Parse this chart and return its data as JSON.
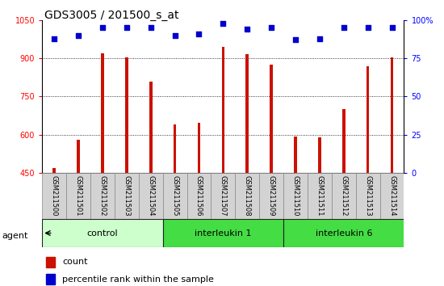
{
  "title": "GDS3005 / 201500_s_at",
  "samples": [
    "GSM211500",
    "GSM211501",
    "GSM211502",
    "GSM211503",
    "GSM211504",
    "GSM211505",
    "GSM211506",
    "GSM211507",
    "GSM211508",
    "GSM211509",
    "GSM211510",
    "GSM211511",
    "GSM211512",
    "GSM211513",
    "GSM211514"
  ],
  "counts": [
    468,
    580,
    920,
    905,
    810,
    640,
    648,
    945,
    915,
    875,
    593,
    590,
    700,
    870,
    905
  ],
  "percentile_ranks": [
    88,
    90,
    95,
    95,
    95,
    90,
    91,
    98,
    94,
    95,
    87,
    88,
    95,
    95,
    95
  ],
  "bar_color": "#cc1100",
  "dot_color": "#0000cc",
  "ylim_left": [
    450,
    1050
  ],
  "ylim_right": [
    0,
    100
  ],
  "yticks_left": [
    450,
    600,
    750,
    900,
    1050
  ],
  "yticks_right": [
    0,
    25,
    50,
    75,
    100
  ],
  "title_fontsize": 10,
  "tick_fontsize": 7,
  "bar_width": 0.12,
  "dot_size": 18,
  "group_data": [
    {
      "name": "control",
      "start": 0,
      "end": 4,
      "color": "#ccffcc"
    },
    {
      "name": "interleukin 1",
      "start": 5,
      "end": 9,
      "color": "#44dd44"
    },
    {
      "name": "interleukin 6",
      "start": 10,
      "end": 14,
      "color": "#44dd44"
    }
  ]
}
